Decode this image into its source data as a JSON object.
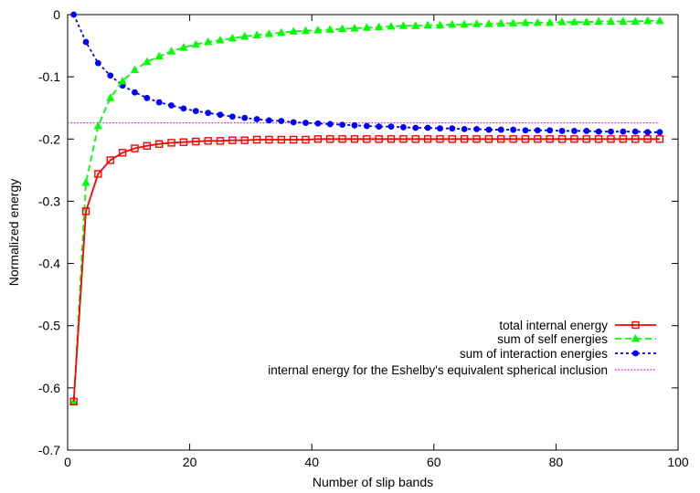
{
  "chart_data": {
    "type": "line",
    "title": "",
    "xlabel": "Number of slip bands",
    "ylabel": "Normalized energy",
    "xlim": [
      0,
      100
    ],
    "ylim": [
      -0.7,
      0
    ],
    "x_ticks": [
      0,
      20,
      40,
      60,
      80,
      100
    ],
    "y_ticks": [
      0,
      -0.1,
      -0.2,
      -0.3,
      -0.4,
      -0.5,
      -0.6,
      -0.7
    ],
    "x_tick_labels": [
      "0",
      "20",
      "40",
      "60",
      "80",
      "100"
    ],
    "y_tick_labels": [
      "0",
      "-0.1",
      "-0.2",
      "-0.3",
      "-0.4",
      "-0.5",
      "-0.6",
      "-0.7"
    ],
    "grid": false,
    "legend_position": "lower-right",
    "x": [
      1,
      3,
      5,
      7,
      9,
      11,
      13,
      15,
      17,
      19,
      21,
      23,
      25,
      27,
      29,
      31,
      33,
      35,
      37,
      39,
      41,
      43,
      45,
      47,
      49,
      51,
      53,
      55,
      57,
      59,
      61,
      63,
      65,
      67,
      69,
      71,
      73,
      75,
      77,
      79,
      81,
      83,
      85,
      87,
      89,
      91,
      93,
      95,
      97
    ],
    "series": [
      {
        "name": "total internal energy",
        "color": "#ff0000",
        "line": "solid",
        "marker": "open-square",
        "values": [
          -0.622,
          -0.316,
          -0.256,
          -0.234,
          -0.222,
          -0.215,
          -0.211,
          -0.208,
          -0.206,
          -0.205,
          -0.204,
          -0.203,
          -0.203,
          -0.202,
          -0.202,
          -0.201,
          -0.201,
          -0.201,
          -0.201,
          -0.201,
          -0.2,
          -0.2,
          -0.2,
          -0.2,
          -0.2,
          -0.2,
          -0.2,
          -0.2,
          -0.2,
          -0.2,
          -0.2,
          -0.2,
          -0.2,
          -0.2,
          -0.2,
          -0.2,
          -0.2,
          -0.2,
          -0.2,
          -0.2,
          -0.2,
          -0.2,
          -0.2,
          -0.2,
          -0.2,
          -0.2,
          -0.2,
          -0.2,
          -0.2
        ]
      },
      {
        "name": "sum of self energies",
        "color": "#00ff00",
        "line": "dashed",
        "marker": "filled-triangle",
        "values": [
          -0.622,
          -0.27,
          -0.179,
          -0.134,
          -0.107,
          -0.089,
          -0.076,
          -0.067,
          -0.059,
          -0.053,
          -0.048,
          -0.044,
          -0.041,
          -0.038,
          -0.035,
          -0.033,
          -0.031,
          -0.029,
          -0.027,
          -0.026,
          -0.025,
          -0.024,
          -0.023,
          -0.022,
          -0.021,
          -0.02,
          -0.019,
          -0.018,
          -0.018,
          -0.017,
          -0.017,
          -0.016,
          -0.016,
          -0.015,
          -0.015,
          -0.014,
          -0.014,
          -0.013,
          -0.013,
          -0.013,
          -0.012,
          -0.012,
          -0.012,
          -0.011,
          -0.011,
          -0.011,
          -0.011,
          -0.01,
          -0.01
        ]
      },
      {
        "name": "sum of interaction energies",
        "color": "#0000ff",
        "line": "dotted",
        "marker": "filled-circle",
        "values": [
          0.0,
          -0.044,
          -0.078,
          -0.098,
          -0.114,
          -0.125,
          -0.134,
          -0.141,
          -0.146,
          -0.151,
          -0.155,
          -0.158,
          -0.161,
          -0.164,
          -0.166,
          -0.168,
          -0.17,
          -0.171,
          -0.173,
          -0.174,
          -0.175,
          -0.176,
          -0.177,
          -0.178,
          -0.179,
          -0.18,
          -0.18,
          -0.181,
          -0.182,
          -0.182,
          -0.183,
          -0.183,
          -0.184,
          -0.184,
          -0.185,
          -0.185,
          -0.185,
          -0.186,
          -0.186,
          -0.186,
          -0.187,
          -0.187,
          -0.187,
          -0.188,
          -0.188,
          -0.188,
          -0.188,
          -0.189,
          -0.189
        ]
      },
      {
        "name": "internal energy for the Eshelby's equivalent spherical inclusion",
        "color": "#ff00ff",
        "line": "fine-dotted",
        "marker": "none",
        "x": [
          0,
          97
        ],
        "values": [
          -0.174,
          -0.174
        ]
      }
    ]
  }
}
